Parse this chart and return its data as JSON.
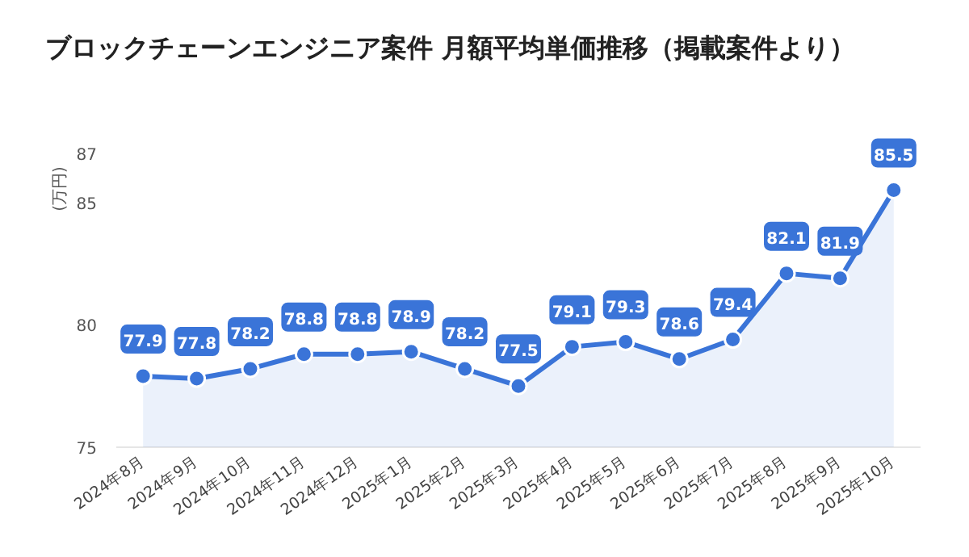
{
  "chart_data": {
    "type": "area",
    "title": "ブロックチェーンエンジニア案件 月額平均単価推移（掲載案件より）",
    "ylabel": "(万円)",
    "categories": [
      "2024年8月",
      "2024年9月",
      "2024年10月",
      "2024年11月",
      "2024年12月",
      "2025年1月",
      "2025年2月",
      "2025年3月",
      "2025年4月",
      "2025年5月",
      "2025年6月",
      "2025年7月",
      "2025年8月",
      "2025年9月",
      "2025年10月"
    ],
    "series": [
      {
        "color": "#3a74d8",
        "values": [
          77.9,
          77.8,
          78.2,
          78.8,
          78.8,
          78.9,
          78.2,
          77.5,
          79.1,
          79.3,
          78.6,
          79.4,
          82.1,
          81.9,
          85.5
        ]
      }
    ],
    "ylim": [
      75,
      87
    ],
    "yticks": [
      75,
      80,
      85,
      87
    ],
    "marker": "circle",
    "data_labels": true
  }
}
